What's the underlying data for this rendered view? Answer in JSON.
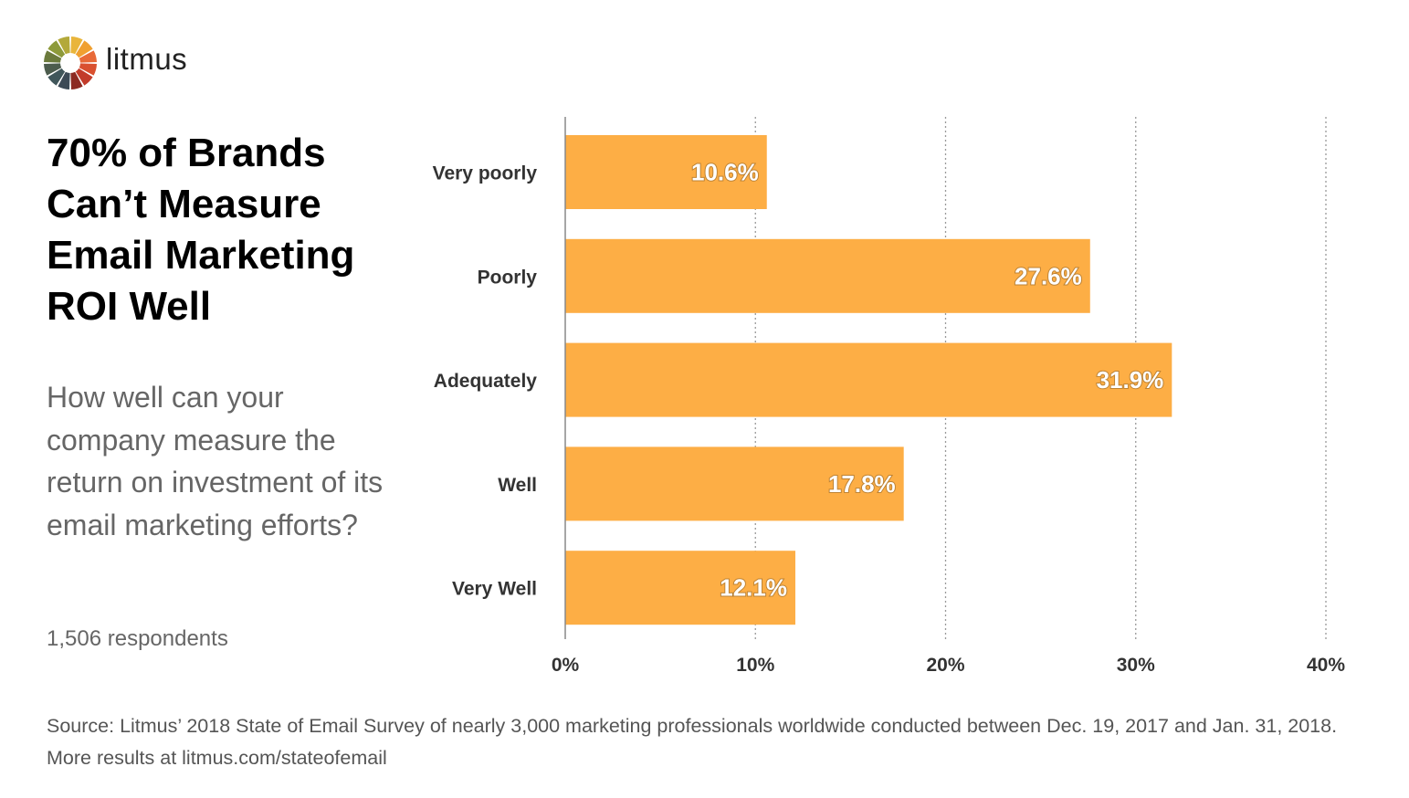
{
  "logo": {
    "text": "litmus",
    "colors": [
      "#e9b53b",
      "#f0a030",
      "#e86a38",
      "#d9502f",
      "#c23b2a",
      "#8c2a22",
      "#3c4a56",
      "#40565a",
      "#4c5c4d",
      "#6b7a3c",
      "#8d9a3a",
      "#b3a93a"
    ]
  },
  "title": "70% of Brands Can’t Measure Email Marketing ROI Well",
  "question": "How well can your company measure the return on investment of its email marketing efforts?",
  "respondents": "1,506 respondents",
  "source": "Source: Litmus’ 2018 State of Email Survey of nearly 3,000 marketing professionals worldwide conducted between Dec. 19, 2017 and Jan. 31, 2018. More results at litmus.com/stateofemail",
  "chart_data": {
    "type": "bar",
    "orientation": "horizontal",
    "categories": [
      "Very poorly",
      "Poorly",
      "Adequately",
      "Well",
      "Very Well"
    ],
    "values": [
      10.6,
      27.6,
      31.9,
      17.8,
      12.1
    ],
    "data_labels": [
      "10.6%",
      "27.6%",
      "31.9%",
      "17.8%",
      "12.1%"
    ],
    "xlim": [
      0,
      40
    ],
    "x_ticks": [
      0,
      10,
      20,
      30,
      40
    ],
    "x_tick_labels": [
      "0%",
      "10%",
      "20%",
      "30%",
      "40%"
    ],
    "grid": "vertical dotted",
    "bar_color": "#fdae45"
  }
}
